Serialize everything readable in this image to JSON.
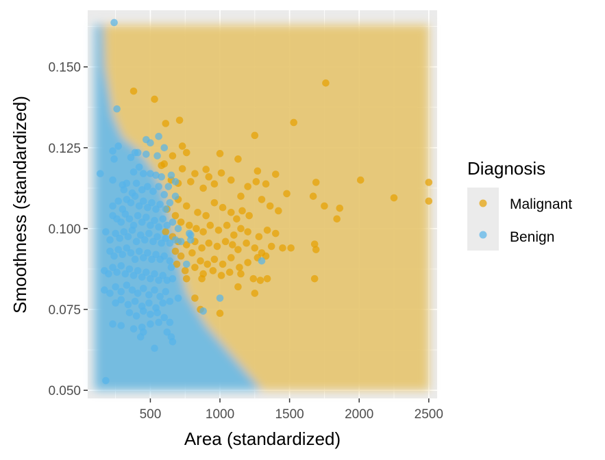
{
  "chart_data": {
    "type": "scatter",
    "title": "",
    "xlabel": "Area (standardized)",
    "ylabel": "Smoothness (standardized)",
    "xlim": [
      50,
      2560
    ],
    "ylim": [
      0.0475,
      0.1675
    ],
    "x_ticks": [
      500,
      1000,
      1500,
      2000,
      2500
    ],
    "y_ticks": [
      0.05,
      0.075,
      0.1,
      0.125,
      0.15
    ],
    "x_tick_labels": [
      "500",
      "1000",
      "1500",
      "2000",
      "2500"
    ],
    "y_tick_labels": [
      "0.050",
      "0.075",
      "0.100",
      "0.125",
      "0.150"
    ],
    "grid": true,
    "legend_position": "right",
    "legend": {
      "title": "Diagnosis",
      "entries": [
        {
          "label": "Malignant",
          "color": "#E69F00"
        },
        {
          "label": "Benign",
          "color": "#56B4E9"
        }
      ]
    },
    "decision_regions": {
      "domain_x": [
        100,
        2500
      ],
      "domain_y": [
        0.05,
        0.163
      ],
      "benign_boundary": [
        [
          160,
          0.163
        ],
        [
          170,
          0.15
        ],
        [
          230,
          0.135
        ],
        [
          300,
          0.128
        ],
        [
          420,
          0.124
        ],
        [
          520,
          0.118
        ],
        [
          600,
          0.111
        ],
        [
          650,
          0.1
        ],
        [
          700,
          0.09
        ],
        [
          760,
          0.08
        ],
        [
          900,
          0.07
        ],
        [
          1100,
          0.06
        ],
        [
          1300,
          0.05
        ]
      ],
      "colors": {
        "Malignant": "#E6C570",
        "Benign": "#6FBCE6"
      }
    },
    "series": [
      {
        "name": "Malignant",
        "color": "#E69F00",
        "points": [
          [
            380,
            0.1425
          ],
          [
            530,
            0.14
          ],
          [
            1760,
            0.145
          ],
          [
            710,
            0.1335
          ],
          [
            610,
            0.1325
          ],
          [
            1530,
            0.1328
          ],
          [
            1250,
            0.1288
          ],
          [
            730,
            0.1255
          ],
          [
            760,
            0.1235
          ],
          [
            660,
            0.1225
          ],
          [
            1000,
            0.1232
          ],
          [
            1130,
            0.1215
          ],
          [
            600,
            0.12
          ],
          [
            580,
            0.1195
          ],
          [
            900,
            0.1183
          ],
          [
            730,
            0.1185
          ],
          [
            820,
            0.117
          ],
          [
            920,
            0.116
          ],
          [
            1010,
            0.1172
          ],
          [
            1270,
            0.1178
          ],
          [
            1400,
            0.1168
          ],
          [
            650,
            0.115
          ],
          [
            700,
            0.114
          ],
          [
            790,
            0.1145
          ],
          [
            880,
            0.1125
          ],
          [
            960,
            0.1138
          ],
          [
            1080,
            0.115
          ],
          [
            1150,
            0.11
          ],
          [
            1200,
            0.113
          ],
          [
            1260,
            0.1145
          ],
          [
            1330,
            0.1138
          ],
          [
            1480,
            0.1108
          ],
          [
            1690,
            0.1143
          ],
          [
            2010,
            0.115
          ],
          [
            2250,
            0.1095
          ],
          [
            2500,
            0.1143
          ],
          [
            2500,
            0.1085
          ],
          [
            1750,
            0.107
          ],
          [
            1860,
            0.1063
          ],
          [
            1840,
            0.103
          ],
          [
            1670,
            0.11
          ],
          [
            700,
            0.109
          ],
          [
            760,
            0.107
          ],
          [
            840,
            0.105
          ],
          [
            900,
            0.104
          ],
          [
            960,
            0.108
          ],
          [
            1020,
            0.1065
          ],
          [
            1080,
            0.105
          ],
          [
            1120,
            0.103
          ],
          [
            1160,
            0.1055
          ],
          [
            1210,
            0.104
          ],
          [
            1300,
            0.109
          ],
          [
            1360,
            0.107
          ],
          [
            1420,
            0.1055
          ],
          [
            620,
            0.106
          ],
          [
            680,
            0.104
          ],
          [
            720,
            0.102
          ],
          [
            780,
            0.101
          ],
          [
            830,
            0.1
          ],
          [
            880,
            0.099
          ],
          [
            930,
            0.101
          ],
          [
            990,
            0.0995
          ],
          [
            1050,
            0.101
          ],
          [
            1100,
            0.098
          ],
          [
            1150,
            0.1
          ],
          [
            1200,
            0.099
          ],
          [
            1280,
            0.0975
          ],
          [
            1340,
            0.0995
          ],
          [
            1400,
            0.0985
          ],
          [
            610,
            0.099
          ],
          [
            660,
            0.0975
          ],
          [
            700,
            0.096
          ],
          [
            760,
            0.095
          ],
          [
            820,
            0.096
          ],
          [
            870,
            0.094
          ],
          [
            920,
            0.0955
          ],
          [
            980,
            0.0945
          ],
          [
            1040,
            0.096
          ],
          [
            1090,
            0.095
          ],
          [
            1130,
            0.0935
          ],
          [
            1190,
            0.0955
          ],
          [
            1250,
            0.094
          ],
          [
            1300,
            0.0925
          ],
          [
            1370,
            0.0945
          ],
          [
            1450,
            0.094
          ],
          [
            1510,
            0.094
          ],
          [
            1680,
            0.0952
          ],
          [
            1690,
            0.0935
          ],
          [
            680,
            0.093
          ],
          [
            720,
            0.0915
          ],
          [
            800,
            0.0925
          ],
          [
            860,
            0.09
          ],
          [
            910,
            0.089
          ],
          [
            960,
            0.0905
          ],
          [
            1020,
            0.089
          ],
          [
            1080,
            0.091
          ],
          [
            1140,
            0.088
          ],
          [
            1200,
            0.0895
          ],
          [
            1270,
            0.091
          ],
          [
            1330,
            0.0915
          ],
          [
            690,
            0.089
          ],
          [
            750,
            0.087
          ],
          [
            820,
            0.088
          ],
          [
            880,
            0.086
          ],
          [
            950,
            0.087
          ],
          [
            1010,
            0.0855
          ],
          [
            1070,
            0.0865
          ],
          [
            1150,
            0.086
          ],
          [
            1290,
            0.084
          ],
          [
            1340,
            0.0845
          ],
          [
            1680,
            0.0845
          ],
          [
            1240,
            0.0845
          ],
          [
            760,
            0.0845
          ],
          [
            870,
            0.0845
          ],
          [
            1130,
            0.082
          ],
          [
            1250,
            0.08
          ],
          [
            820,
            0.0785
          ],
          [
            1000,
            0.0738
          ],
          [
            860,
            0.075
          ]
        ]
      },
      {
        "name": "Benign",
        "color": "#56B4E9",
        "points": [
          [
            240,
            0.1637
          ],
          [
            260,
            0.137
          ],
          [
            240,
            0.1215
          ],
          [
            270,
            0.1255
          ],
          [
            230,
            0.124
          ],
          [
            360,
            0.122
          ],
          [
            390,
            0.1235
          ],
          [
            410,
            0.1235
          ],
          [
            470,
            0.1275
          ],
          [
            500,
            0.1265
          ],
          [
            560,
            0.1285
          ],
          [
            600,
            0.125
          ],
          [
            550,
            0.1225
          ],
          [
            470,
            0.123
          ],
          [
            140,
            0.117
          ],
          [
            230,
            0.115
          ],
          [
            300,
            0.1135
          ],
          [
            330,
            0.114
          ],
          [
            380,
            0.1175
          ],
          [
            420,
            0.119
          ],
          [
            450,
            0.117
          ],
          [
            500,
            0.117
          ],
          [
            540,
            0.1165
          ],
          [
            580,
            0.116
          ],
          [
            650,
            0.1165
          ],
          [
            680,
            0.1145
          ],
          [
            310,
            0.112
          ],
          [
            370,
            0.111
          ],
          [
            400,
            0.114
          ],
          [
            440,
            0.112
          ],
          [
            480,
            0.113
          ],
          [
            520,
            0.1115
          ],
          [
            560,
            0.113
          ],
          [
            600,
            0.1105
          ],
          [
            630,
            0.113
          ],
          [
            680,
            0.11
          ],
          [
            230,
            0.107
          ],
          [
            270,
            0.1085
          ],
          [
            300,
            0.106
          ],
          [
            330,
            0.109
          ],
          [
            360,
            0.108
          ],
          [
            390,
            0.11
          ],
          [
            420,
            0.107
          ],
          [
            450,
            0.1085
          ],
          [
            480,
            0.1065
          ],
          [
            510,
            0.108
          ],
          [
            540,
            0.106
          ],
          [
            570,
            0.1075
          ],
          [
            610,
            0.106
          ],
          [
            640,
            0.108
          ],
          [
            230,
            0.104
          ],
          [
            260,
            0.103
          ],
          [
            290,
            0.102
          ],
          [
            320,
            0.1045
          ],
          [
            350,
            0.103
          ],
          [
            380,
            0.101
          ],
          [
            410,
            0.104
          ],
          [
            440,
            0.102
          ],
          [
            470,
            0.1035
          ],
          [
            500,
            0.101
          ],
          [
            530,
            0.1025
          ],
          [
            560,
            0.1005
          ],
          [
            590,
            0.103
          ],
          [
            620,
            0.101
          ],
          [
            660,
            0.102
          ],
          [
            700,
            0.1
          ],
          [
            180,
            0.099
          ],
          [
            210,
            0.0965
          ],
          [
            250,
            0.0985
          ],
          [
            280,
            0.097
          ],
          [
            310,
            0.099
          ],
          [
            340,
            0.0975
          ],
          [
            370,
            0.0995
          ],
          [
            400,
            0.096
          ],
          [
            430,
            0.098
          ],
          [
            460,
            0.0965
          ],
          [
            490,
            0.0985
          ],
          [
            520,
            0.096
          ],
          [
            550,
            0.0975
          ],
          [
            580,
            0.0955
          ],
          [
            610,
            0.097
          ],
          [
            640,
            0.0955
          ],
          [
            680,
            0.0965
          ],
          [
            720,
            0.096
          ],
          [
            790,
            0.0965
          ],
          [
            780,
            0.0985
          ],
          [
            210,
            0.093
          ],
          [
            240,
            0.0915
          ],
          [
            270,
            0.0935
          ],
          [
            300,
            0.092
          ],
          [
            330,
            0.094
          ],
          [
            360,
            0.0925
          ],
          [
            390,
            0.0905
          ],
          [
            420,
            0.093
          ],
          [
            450,
            0.091
          ],
          [
            480,
            0.0925
          ],
          [
            510,
            0.0905
          ],
          [
            540,
            0.092
          ],
          [
            570,
            0.0905
          ],
          [
            600,
            0.0915
          ],
          [
            640,
            0.09
          ],
          [
            170,
            0.087
          ],
          [
            200,
            0.086
          ],
          [
            230,
            0.088
          ],
          [
            260,
            0.0865
          ],
          [
            290,
            0.0885
          ],
          [
            320,
            0.086
          ],
          [
            350,
            0.0875
          ],
          [
            380,
            0.0855
          ],
          [
            410,
            0.087
          ],
          [
            440,
            0.085
          ],
          [
            470,
            0.0865
          ],
          [
            500,
            0.0845
          ],
          [
            530,
            0.086
          ],
          [
            560,
            0.084
          ],
          [
            590,
            0.0855
          ],
          [
            620,
            0.084
          ],
          [
            660,
            0.0845
          ],
          [
            170,
            0.081
          ],
          [
            210,
            0.08
          ],
          [
            250,
            0.082
          ],
          [
            290,
            0.0805
          ],
          [
            330,
            0.0825
          ],
          [
            370,
            0.081
          ],
          [
            410,
            0.08
          ],
          [
            450,
            0.0815
          ],
          [
            490,
            0.0795
          ],
          [
            530,
            0.081
          ],
          [
            570,
            0.079
          ],
          [
            610,
            0.0805
          ],
          [
            250,
            0.077
          ],
          [
            290,
            0.078
          ],
          [
            340,
            0.0765
          ],
          [
            390,
            0.0775
          ],
          [
            440,
            0.076
          ],
          [
            490,
            0.077
          ],
          [
            540,
            0.0755
          ],
          [
            590,
            0.077
          ],
          [
            640,
            0.0775
          ],
          [
            700,
            0.0785
          ],
          [
            350,
            0.074
          ],
          [
            400,
            0.073
          ],
          [
            450,
            0.0745
          ],
          [
            500,
            0.0735
          ],
          [
            550,
            0.074
          ],
          [
            600,
            0.0725
          ],
          [
            230,
            0.0705
          ],
          [
            290,
            0.07
          ],
          [
            380,
            0.069
          ],
          [
            440,
            0.0695
          ],
          [
            500,
            0.0705
          ],
          [
            560,
            0.071
          ],
          [
            640,
            0.071
          ],
          [
            450,
            0.068
          ],
          [
            620,
            0.068
          ],
          [
            650,
            0.0665
          ],
          [
            430,
            0.0665
          ],
          [
            530,
            0.063
          ],
          [
            660,
            0.065
          ],
          [
            180,
            0.053
          ],
          [
            1000,
            0.0785
          ],
          [
            880,
            0.0745
          ],
          [
            1300,
            0.09
          ],
          [
            650,
            0.088
          ],
          [
            760,
            0.089
          ],
          [
            790,
            0.098
          ]
        ]
      }
    ]
  }
}
